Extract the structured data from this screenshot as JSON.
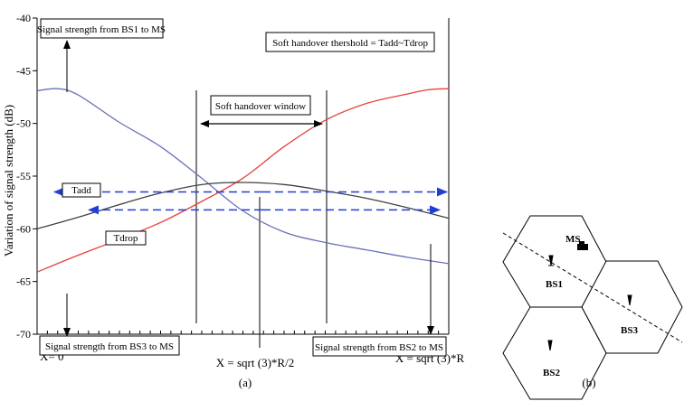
{
  "chart_data": {
    "type": "line",
    "ylabel": "Variation of signal strength (dB)",
    "ylim": [
      -70,
      -40
    ],
    "xlim": [
      0,
      1
    ],
    "y_ticks": [
      -40,
      -45,
      -50,
      -55,
      -60,
      -65,
      -70
    ],
    "x_labels": {
      "left": "X= 0",
      "middle": "X = sqrt (3)*R/2",
      "right": "X = sqrt (3)*R"
    },
    "series": [
      {
        "key": "bs1",
        "color": "#6a6fb8",
        "x": [
          0,
          0.05,
          0.1,
          0.2,
          0.3,
          0.4,
          0.5,
          0.6,
          0.7,
          0.8,
          0.9,
          1.0
        ],
        "values": [
          -46.9,
          -46.7,
          -47.3,
          -49.9,
          -52.2,
          -55.2,
          -58.3,
          -60.3,
          -61.3,
          -62.0,
          -62.7,
          -63.3
        ]
      },
      {
        "key": "bs2",
        "color": "#e8403a",
        "x": [
          0,
          0.1,
          0.2,
          0.3,
          0.4,
          0.5,
          0.6,
          0.7,
          0.8,
          0.9,
          0.95,
          1.0
        ],
        "values": [
          -64.1,
          -62.5,
          -61.0,
          -59.4,
          -57.4,
          -55.2,
          -52.2,
          -49.7,
          -48.1,
          -47.2,
          -46.8,
          -46.7
        ]
      },
      {
        "key": "bs3",
        "color": "#404040",
        "x": [
          0,
          0.1,
          0.2,
          0.3,
          0.4,
          0.5,
          0.6,
          0.7,
          0.8,
          0.9,
          1.0
        ],
        "values": [
          -60.0,
          -58.9,
          -57.7,
          -56.6,
          -55.8,
          -55.6,
          -55.8,
          -56.4,
          -57.1,
          -58.0,
          -59.0
        ]
      }
    ],
    "tadd_level": -56.5,
    "tdrop_level": -58.2,
    "annotations": {
      "bs1": "Signal strength from BS1 to MS",
      "threshold": "Soft handover thershold = Tadd~Tdrop",
      "window": "Soft handover window",
      "tadd": "Tadd",
      "tdrop": "Tdrop",
      "bs3": "Signal strength from BS3 to MS",
      "bs2": "Signal strength from BS2 to MS"
    },
    "caption": "(a)"
  },
  "diagram": {
    "labels": {
      "ms": "MS",
      "bs1": "BS1",
      "bs2": "BS2",
      "bs3": "BS3"
    },
    "caption": "(b)"
  }
}
